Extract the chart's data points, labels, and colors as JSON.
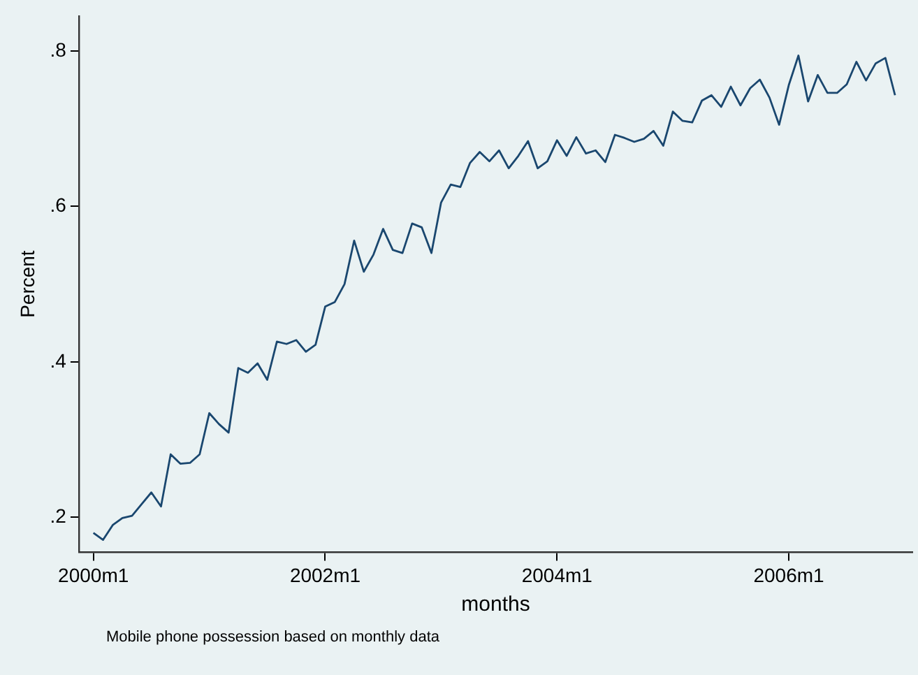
{
  "chart_data": {
    "type": "line",
    "xlabel": "months",
    "ylabel": "Percent",
    "annotations": [
      "Mobile phone possession based on monthly data"
    ],
    "x": [
      "2000-01",
      "2000-02",
      "2000-03",
      "2000-04",
      "2000-05",
      "2000-06",
      "2000-07",
      "2000-08",
      "2000-09",
      "2000-10",
      "2000-11",
      "2000-12",
      "2001-01",
      "2001-02",
      "2001-03",
      "2001-04",
      "2001-05",
      "2001-06",
      "2001-07",
      "2001-08",
      "2001-09",
      "2001-10",
      "2001-11",
      "2001-12",
      "2002-01",
      "2002-02",
      "2002-03",
      "2002-04",
      "2002-05",
      "2002-06",
      "2002-07",
      "2002-08",
      "2002-09",
      "2002-10",
      "2002-11",
      "2002-12",
      "2003-01",
      "2003-02",
      "2003-03",
      "2003-04",
      "2003-05",
      "2003-06",
      "2003-07",
      "2003-08",
      "2003-09",
      "2003-10",
      "2003-11",
      "2003-12",
      "2004-01",
      "2004-02",
      "2004-03",
      "2004-04",
      "2004-05",
      "2004-06",
      "2004-07",
      "2004-08",
      "2004-09",
      "2004-10",
      "2004-11",
      "2004-12",
      "2005-01",
      "2005-02",
      "2005-03",
      "2005-04",
      "2005-05",
      "2005-06",
      "2005-07",
      "2005-08",
      "2005-09",
      "2005-10",
      "2005-11",
      "2005-12",
      "2006-01",
      "2006-02",
      "2006-03",
      "2006-04",
      "2006-05",
      "2006-06",
      "2006-07",
      "2006-08",
      "2006-09",
      "2006-10",
      "2006-11",
      "2006-12"
    ],
    "series": [
      {
        "color": "#1a476f",
        "values": [
          0.18,
          0.171,
          0.19,
          0.199,
          0.202,
          0.217,
          0.232,
          0.214,
          0.281,
          0.269,
          0.27,
          0.281,
          0.334,
          0.32,
          0.309,
          0.392,
          0.386,
          0.398,
          0.377,
          0.426,
          0.423,
          0.428,
          0.413,
          0.422,
          0.471,
          0.477,
          0.5,
          0.556,
          0.516,
          0.538,
          0.571,
          0.544,
          0.54,
          0.578,
          0.573,
          0.54,
          0.605,
          0.628,
          0.625,
          0.656,
          0.67,
          0.658,
          0.672,
          0.649,
          0.665,
          0.684,
          0.649,
          0.658,
          0.685,
          0.665,
          0.689,
          0.668,
          0.672,
          0.657,
          0.692,
          0.688,
          0.683,
          0.687,
          0.697,
          0.678,
          0.722,
          0.71,
          0.708,
          0.736,
          0.743,
          0.728,
          0.754,
          0.73,
          0.752,
          0.763,
          0.74,
          0.705,
          0.756,
          0.794,
          0.735,
          0.769,
          0.746,
          0.746,
          0.757,
          0.786,
          0.762,
          0.784,
          0.791,
          0.743
        ]
      }
    ],
    "xlim": [
      "1999-11-16",
      "2007-01-25"
    ],
    "xticks": [
      {
        "value": "2000-01",
        "label": "2000m1"
      },
      {
        "value": "2002-01",
        "label": "2002m1"
      },
      {
        "value": "2004-01",
        "label": "2004m1"
      },
      {
        "value": "2006-01",
        "label": "2006m1"
      }
    ],
    "ylim": [
      0.155,
      0.845
    ],
    "yticks": [
      {
        "value": 0.2,
        "label": ".2"
      },
      {
        "value": 0.4,
        "label": ".4"
      },
      {
        "value": 0.6,
        "label": ".6"
      },
      {
        "value": 0.8,
        "label": ".8"
      }
    ],
    "grid": false,
    "legend": false,
    "marker": "none",
    "line_style": "solid"
  }
}
